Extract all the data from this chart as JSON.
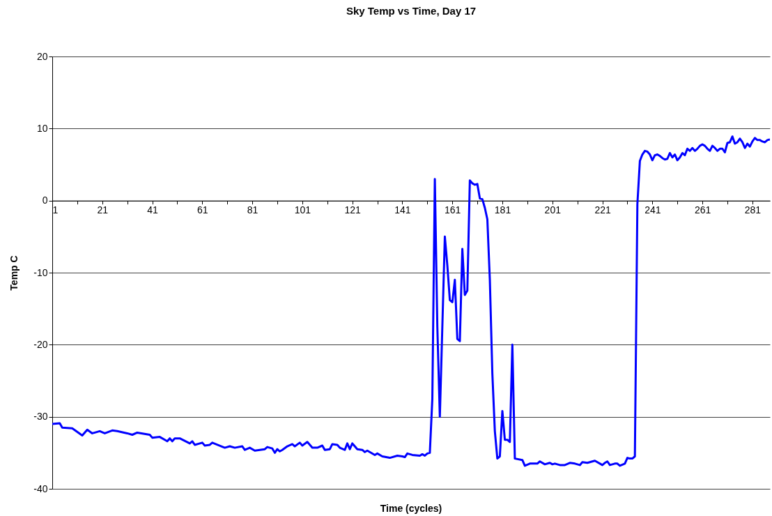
{
  "chart_data": {
    "type": "line",
    "title": "Sky Temp vs Time, Day 17",
    "xlabel": "Time (cycles)",
    "ylabel": "Temp C",
    "ylim": [
      -40,
      20
    ],
    "yticks": [
      -40,
      -30,
      -20,
      -10,
      0,
      10,
      20
    ],
    "xlim": [
      1,
      288
    ],
    "xticks": [
      1,
      {
        "value": 11,
        "label": null
      },
      21,
      {
        "value": 31,
        "label": null
      },
      41,
      {
        "value": 51,
        "label": null
      },
      61,
      {
        "value": 71,
        "label": null
      },
      81,
      {
        "value": 91,
        "label": null
      },
      101,
      {
        "value": 111,
        "label": null
      },
      121,
      {
        "value": 131,
        "label": null
      },
      141,
      {
        "value": 151,
        "label": null
      },
      161,
      {
        "value": 171,
        "label": null
      },
      181,
      {
        "value": 191,
        "label": null
      },
      201,
      {
        "value": 211,
        "label": null
      },
      221,
      {
        "value": 231,
        "label": null
      },
      241,
      {
        "value": 251,
        "label": null
      },
      261,
      {
        "value": 271,
        "label": null
      },
      281
    ],
    "grid": "y",
    "marker": "none",
    "line_style": "solid",
    "series": [
      {
        "color": "#0000ff",
        "x": [
          1,
          4,
          5,
          9,
          13,
          15,
          17,
          20,
          22,
          25,
          27,
          31,
          33,
          35,
          40,
          41,
          44,
          47,
          48,
          49,
          50,
          52,
          56,
          57,
          58,
          61,
          62,
          64,
          65,
          70,
          72,
          74,
          77,
          78,
          80,
          82,
          86,
          87,
          89,
          90,
          91,
          92,
          93,
          95,
          97,
          98,
          100,
          101,
          103,
          105,
          107,
          109,
          110,
          112,
          113,
          115,
          116,
          118,
          119,
          120,
          121,
          123,
          125,
          126,
          127,
          130,
          131,
          133,
          136,
          139,
          141,
          142,
          143,
          145,
          148,
          149,
          150,
          151,
          152,
          153,
          154,
          155,
          156,
          158,
          159,
          160,
          161,
          162,
          163,
          164,
          165,
          166,
          167,
          168,
          169,
          170,
          171,
          172,
          173,
          174,
          175,
          176,
          177,
          178,
          179,
          180,
          181,
          182,
          183,
          184,
          185,
          186,
          189,
          190,
          192,
          195,
          196,
          198,
          200,
          201,
          202,
          204,
          206,
          208,
          210,
          212,
          213,
          215,
          217,
          218,
          221,
          222,
          223,
          224,
          226,
          227,
          228,
          230,
          231,
          232,
          233,
          234,
          235,
          236,
          237,
          238,
          239,
          240,
          241,
          242,
          243,
          244,
          245,
          246,
          247,
          248,
          249,
          250,
          251,
          252,
          253,
          254,
          255,
          256,
          257,
          258,
          259,
          260,
          261,
          262,
          263,
          264,
          265,
          266,
          267,
          268,
          269,
          270,
          271,
          272,
          273,
          274,
          275,
          276,
          277,
          278,
          279,
          280,
          281,
          282,
          283,
          284,
          285,
          286,
          287,
          288
        ],
        "values": [
          -31.0,
          -30.9,
          -31.5,
          -31.6,
          -32.6,
          -31.8,
          -32.3,
          -32.0,
          -32.3,
          -31.9,
          -32.0,
          -32.3,
          -32.5,
          -32.2,
          -32.5,
          -32.9,
          -32.8,
          -33.4,
          -33.0,
          -33.4,
          -33.0,
          -33.0,
          -33.7,
          -33.4,
          -33.9,
          -33.6,
          -34.0,
          -33.9,
          -33.6,
          -34.3,
          -34.1,
          -34.3,
          -34.1,
          -34.6,
          -34.3,
          -34.7,
          -34.5,
          -34.2,
          -34.4,
          -35.0,
          -34.5,
          -34.8,
          -34.6,
          -34.1,
          -33.8,
          -34.1,
          -33.6,
          -34.0,
          -33.5,
          -34.3,
          -34.3,
          -34.0,
          -34.6,
          -34.5,
          -33.8,
          -33.9,
          -34.3,
          -34.6,
          -33.7,
          -34.5,
          -33.7,
          -34.5,
          -34.6,
          -34.9,
          -34.7,
          -35.3,
          -35.1,
          -35.5,
          -35.7,
          -35.4,
          -35.5,
          -35.6,
          -35.1,
          -35.3,
          -35.4,
          -35.2,
          -35.4,
          -35.1,
          -35.0,
          -27.5,
          3.0,
          -17.5,
          -30.0,
          -5.0,
          -9.0,
          -13.8,
          -14.1,
          -11.0,
          -19.2,
          -19.5,
          -6.7,
          -13.1,
          -12.5,
          2.8,
          2.4,
          2.2,
          2.3,
          0.3,
          0.2,
          -1.0,
          -2.6,
          -11.0,
          -24.0,
          -32.0,
          -35.8,
          -35.5,
          -29.2,
          -33.2,
          -33.2,
          -33.5,
          -20.0,
          -35.8,
          -36.0,
          -36.8,
          -36.5,
          -36.5,
          -36.2,
          -36.6,
          -36.4,
          -36.6,
          -36.5,
          -36.7,
          -36.7,
          -36.4,
          -36.5,
          -36.7,
          -36.3,
          -36.4,
          -36.2,
          -36.1,
          -36.7,
          -36.4,
          -36.2,
          -36.7,
          -36.5,
          -36.5,
          -36.8,
          -36.5,
          -35.7,
          -35.8,
          -35.8,
          -35.5,
          -0.5,
          5.5,
          6.4,
          6.9,
          6.8,
          6.4,
          5.6,
          6.3,
          6.4,
          6.2,
          5.9,
          5.7,
          5.8,
          6.6,
          6.0,
          6.4,
          5.6,
          6.0,
          6.6,
          6.3,
          7.2,
          6.9,
          7.3,
          6.9,
          7.2,
          7.6,
          7.8,
          7.6,
          7.2,
          6.9,
          7.6,
          7.3,
          6.9,
          7.2,
          7.2,
          6.7,
          8.0,
          8.1,
          8.9,
          7.9,
          8.1,
          8.6,
          8.1,
          7.3,
          7.9,
          7.5,
          8.2,
          8.7,
          8.4,
          8.4,
          8.2,
          8.1,
          8.4,
          8.5
        ]
      }
    ]
  }
}
